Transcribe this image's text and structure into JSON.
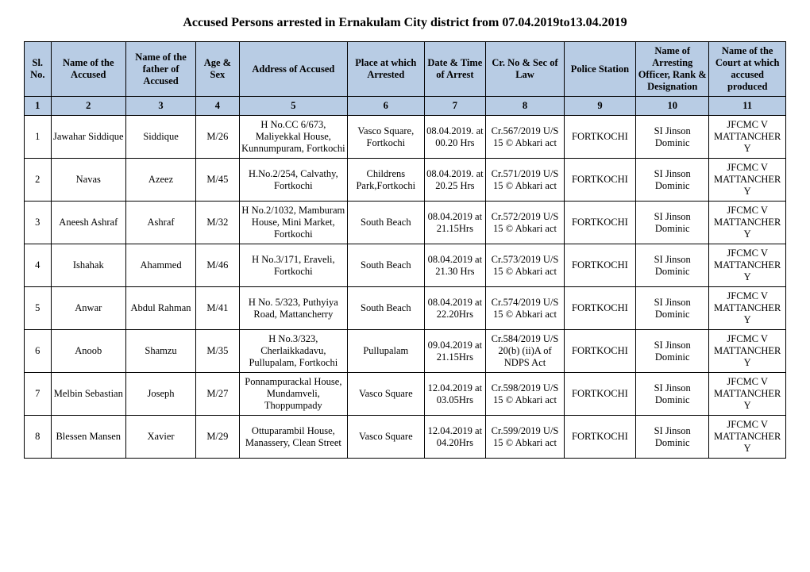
{
  "title": "Accused Persons arrested in   Ernakulam City  district from  07.04.2019to13.04.2019",
  "headers": {
    "c1": "Sl. No.",
    "c2": "Name of the Accused",
    "c3": "Name of the father of Accused",
    "c4": "Age & Sex",
    "c5": "Address of Accused",
    "c6": "Place at which Arrested",
    "c7": "Date & Time of Arrest",
    "c8": "Cr. No & Sec of Law",
    "c9": "Police Station",
    "c10": "Name of Arresting Officer, Rank & Designation",
    "c11": "Name of the Court at which accused produced"
  },
  "colnums": [
    "1",
    "2",
    "3",
    "4",
    "5",
    "6",
    "7",
    "8",
    "9",
    "10",
    "11"
  ],
  "rows": [
    {
      "sl": "1",
      "name": "Jawahar Siddique",
      "father": "Siddique",
      "age": "M/26",
      "addr": "H No.CC 6/673, Maliyekkal House, Kunnumpuram, Fortkochi",
      "place": "Vasco Square, Fortkochi",
      "dt": "08.04.2019. at 00.20 Hrs",
      "crno": "Cr.567/2019 U/S 15 © Abkari act",
      "ps": "FORTKOCHI",
      "off": "SI Jinson Dominic",
      "court": "JFCMC V MATTANCHERY"
    },
    {
      "sl": "2",
      "name": "Navas",
      "father": "Azeez",
      "age": "M/45",
      "addr": "H.No.2/254, Calvathy, Fortkochi",
      "place": "Childrens Park,Fortkochi",
      "dt": "08.04.2019. at 20.25 Hrs",
      "crno": "Cr.571/2019 U/S 15 © Abkari act",
      "ps": "FORTKOCHI",
      "off": "SI Jinson Dominic",
      "court": "JFCMC V MATTANCHERY"
    },
    {
      "sl": "3",
      "name": "Aneesh Ashraf",
      "father": "Ashraf",
      "age": "M/32",
      "addr": "H No.2/1032, Mamburam House, Mini Market, Fortkochi",
      "place": "South Beach",
      "dt": "08.04.2019 at 21.15Hrs",
      "crno": "Cr.572/2019 U/S 15 © Abkari act",
      "ps": "FORTKOCHI",
      "off": "SI Jinson Dominic",
      "court": "JFCMC V MATTANCHERY"
    },
    {
      "sl": "4",
      "name": "Ishahak",
      "father": "Ahammed",
      "age": "M/46",
      "addr": "H No.3/171, Eraveli, Fortkochi",
      "place": "South Beach",
      "dt": "08.04.2019 at 21.30 Hrs",
      "crno": "Cr.573/2019 U/S 15 © Abkari act",
      "ps": "FORTKOCHI",
      "off": "SI Jinson Dominic",
      "court": "JFCMC V MATTANCHERY"
    },
    {
      "sl": "5",
      "name": "Anwar",
      "father": "Abdul Rahman",
      "age": "M/41",
      "addr": "H No. 5/323, Puthyiya Road, Mattancherry",
      "place": "South Beach",
      "dt": "08.04.2019 at 22.20Hrs",
      "crno": "Cr.574/2019 U/S 15 © Abkari act",
      "ps": "FORTKOCHI",
      "off": "SI Jinson Dominic",
      "court": "JFCMC V MATTANCHERY"
    },
    {
      "sl": "6",
      "name": "Anoob",
      "father": "Shamzu",
      "age": "M/35",
      "addr": "H No.3/323, Cherlaikkadavu, Pullupalam, Fortkochi",
      "place": "Pullupalam",
      "dt": "09.04.2019 at 21.15Hrs",
      "crno": "Cr.584/2019 U/S 20(b) (ii)A of NDPS Act",
      "ps": "FORTKOCHI",
      "off": "SI Jinson Dominic",
      "court": "JFCMC V MATTANCHERY"
    },
    {
      "sl": "7",
      "name": "Melbin Sebastian",
      "father": "Joseph",
      "age": "M/27",
      "addr": "Ponnampurackal House, Mundamveli, Thoppumpady",
      "place": "Vasco Square",
      "dt": "12.04.2019 at 03.05Hrs",
      "crno": "Cr.598/2019 U/S 15 © Abkari act",
      "ps": "FORTKOCHI",
      "off": "SI Jinson Dominic",
      "court": "JFCMC V MATTANCHERY"
    },
    {
      "sl": "8",
      "name": "Blessen Mansen",
      "father": "Xavier",
      "age": "M/29",
      "addr": "Ottuparambil House, Manassery, Clean Street",
      "place": "Vasco Square",
      "dt": "12.04.2019 at 04.20Hrs",
      "crno": "Cr.599/2019 U/S 15 © Abkari act",
      "ps": "FORTKOCHI",
      "off": "SI Jinson Dominic",
      "court": "JFCMC V MATTANCHERY"
    }
  ],
  "style": {
    "header_bg": "#b8cce4",
    "border_color": "#000000",
    "font_family": "Times New Roman",
    "title_fontsize": 16,
    "cell_fontsize": 12.5
  }
}
